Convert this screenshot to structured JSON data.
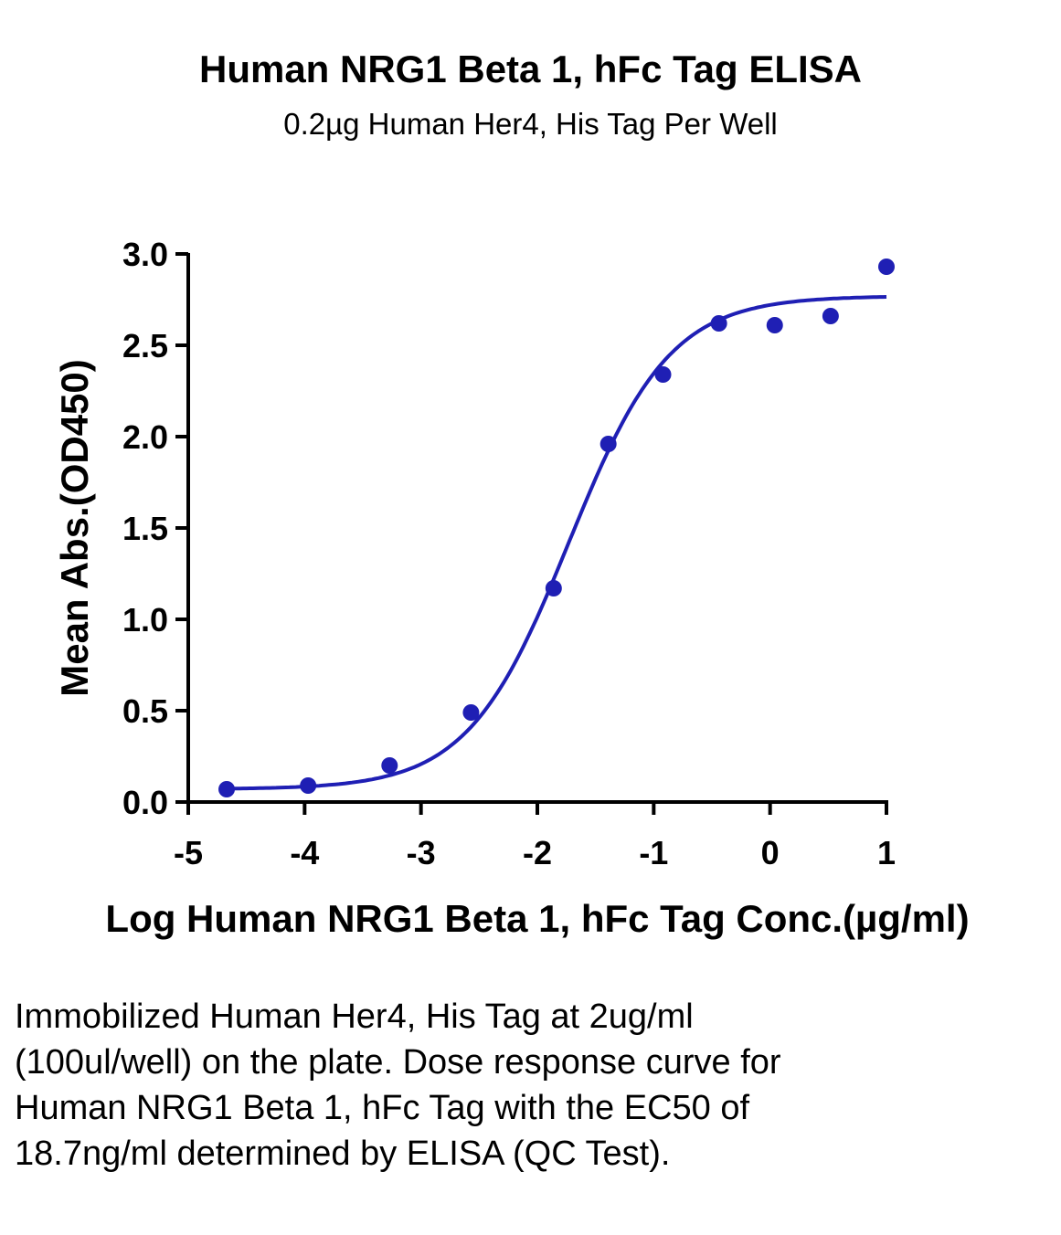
{
  "chart_data": {
    "type": "scatter",
    "title": "Human NRG1 Beta 1, hFc Tag ELISA",
    "subtitle": "0.2µg Human Her4, His Tag Per Well",
    "xlabel": "Log Human NRG1 Beta 1, hFc Tag Conc.(µg/ml)",
    "ylabel": "Mean Abs.(OD450)",
    "xlim": [
      -5,
      1
    ],
    "ylim": [
      0,
      3.0
    ],
    "x_ticks": [
      -5,
      -4,
      -3,
      -2,
      -1,
      0,
      1
    ],
    "x_tick_labels": [
      "-5",
      "-4",
      "-3",
      "-2",
      "-1",
      "0",
      "1"
    ],
    "y_ticks": [
      0,
      0.5,
      1.0,
      1.5,
      2.0,
      2.5,
      3.0
    ],
    "y_tick_labels": [
      "0.0",
      "0.5",
      "1.0",
      "1.5",
      "2.0",
      "2.5",
      "3.0"
    ],
    "grid": false,
    "color": "#1f1fb4",
    "series": [
      {
        "x": [
          -4.67,
          -3.97,
          -3.27,
          -2.57,
          -1.86,
          -1.39,
          -0.92,
          -0.44,
          0.04,
          0.52,
          1.0
        ],
        "y": [
          0.07,
          0.09,
          0.2,
          0.49,
          1.17,
          1.96,
          2.34,
          2.62,
          2.61,
          2.66,
          2.93
        ]
      }
    ],
    "fit_curve": {
      "model": "4PL",
      "bottom": 0.07,
      "top": 2.77,
      "log_ec50": -1.73,
      "hill": 1.0
    }
  },
  "caption": "Immobilized Human Her4, His Tag at 2ug/ml (100ul/well) on the plate. Dose response curve for Human NRG1 Beta 1, hFc Tag with the EC50 of 18.7ng/ml determined by ELISA (QC Test)."
}
